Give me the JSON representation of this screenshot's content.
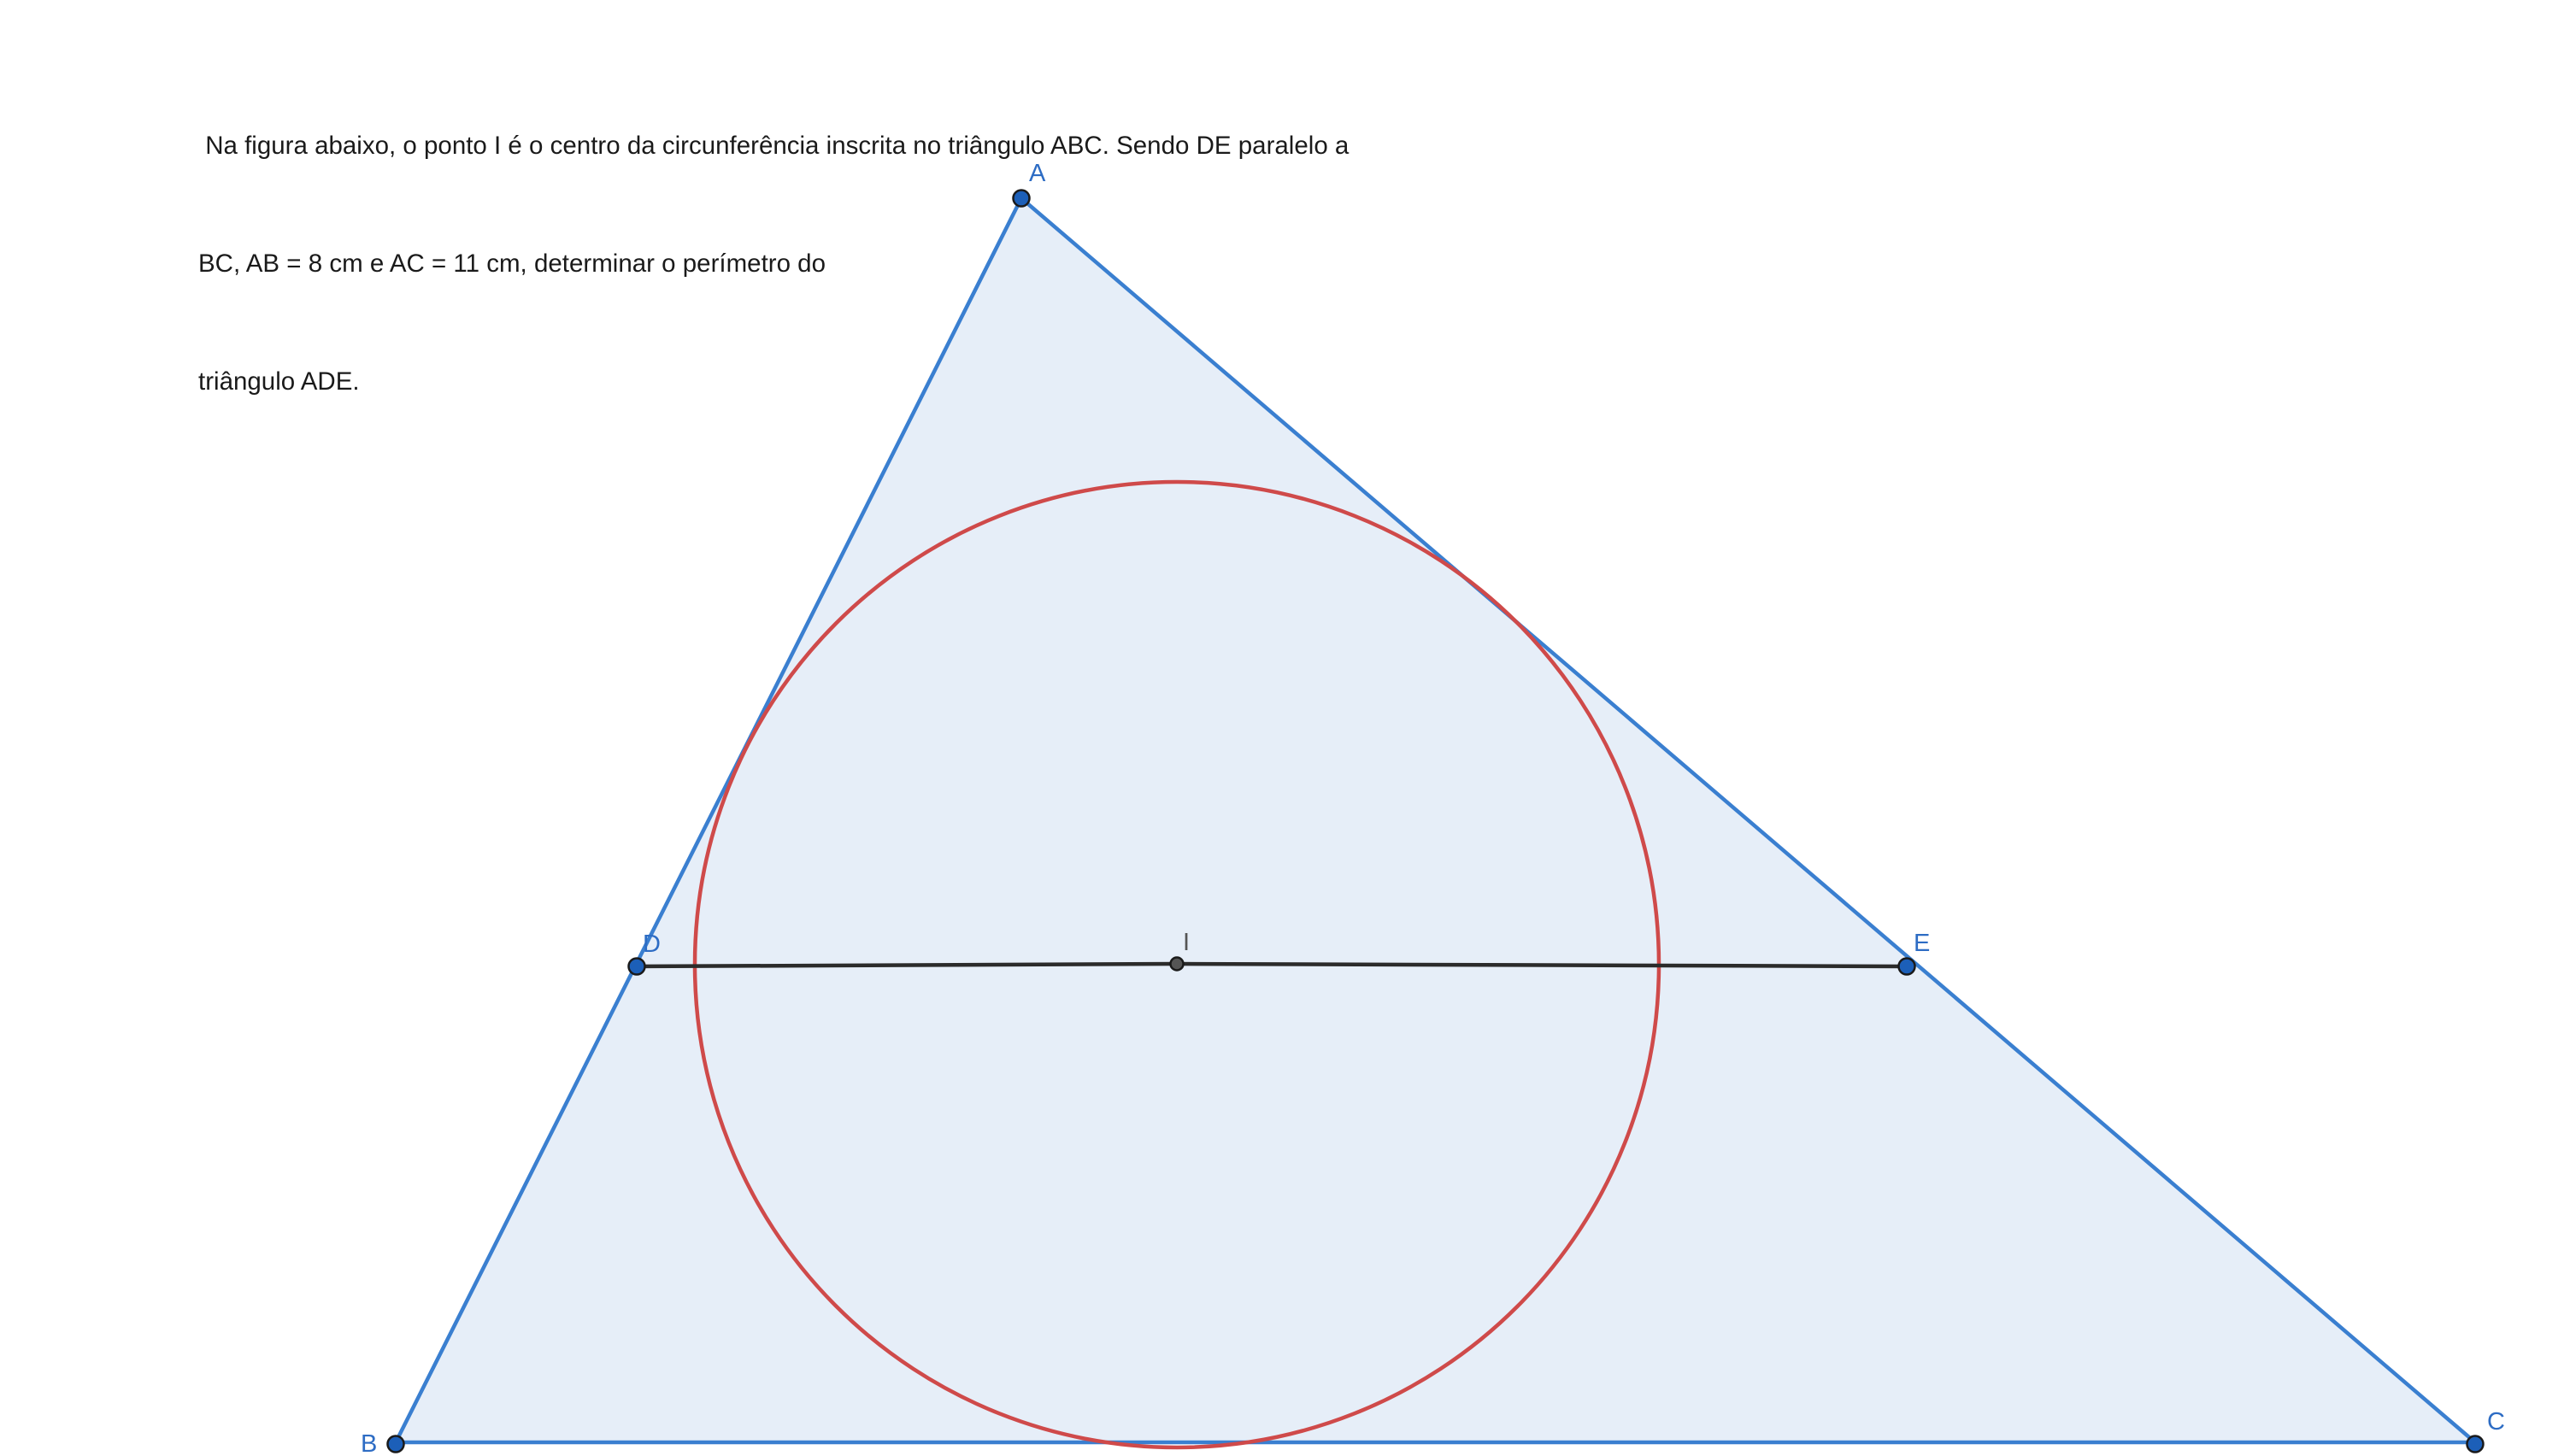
{
  "problem": {
    "lines": [
      " Na figura abaixo, o ponto I é o centro da circunferência inscrita no triângulo ABC. Sendo DE paralelo a",
      "BC, AB = 8 cm e AC = 11 cm, determinar o perímetro do",
      "triângulo ADE."
    ]
  },
  "figure": {
    "labels": {
      "A": "A",
      "B": "B",
      "C": "C",
      "D": "D",
      "E": "E",
      "I": "I"
    },
    "colors": {
      "triangle_stroke": "#3a7fd0",
      "triangle_fill": "#e6eef8",
      "incircle_stroke": "#cf4a4a",
      "segment_de": "#2b2b2b",
      "point_fill": "#1c5fb8",
      "point_stroke": "#1a1a1a",
      "center_fill": "#555555",
      "label_blue": "#2d6cc4",
      "label_gray": "#555555"
    }
  }
}
